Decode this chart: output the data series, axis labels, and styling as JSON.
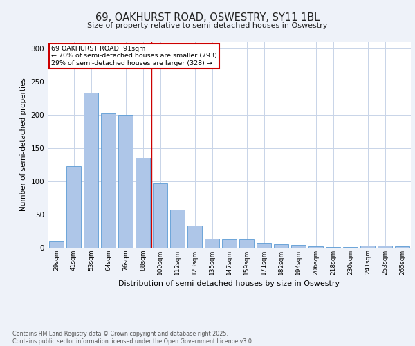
{
  "title1": "69, OAKHURST ROAD, OSWESTRY, SY11 1BL",
  "title2": "Size of property relative to semi-detached houses in Oswestry",
  "xlabel": "Distribution of semi-detached houses by size in Oswestry",
  "ylabel": "Number of semi-detached properties",
  "categories": [
    "29sqm",
    "41sqm",
    "53sqm",
    "64sqm",
    "76sqm",
    "88sqm",
    "100sqm",
    "112sqm",
    "123sqm",
    "135sqm",
    "147sqm",
    "159sqm",
    "171sqm",
    "182sqm",
    "194sqm",
    "206sqm",
    "218sqm",
    "230sqm",
    "241sqm",
    "253sqm",
    "265sqm"
  ],
  "values": [
    10,
    122,
    233,
    202,
    200,
    135,
    96,
    57,
    33,
    13,
    12,
    12,
    7,
    5,
    4,
    2,
    1,
    1,
    3,
    3,
    2
  ],
  "bar_color": "#aec6e8",
  "bar_edge_color": "#5b9bd5",
  "annotation_text": "69 OAKHURST ROAD: 91sqm\n← 70% of semi-detached houses are smaller (793)\n29% of semi-detached houses are larger (328) →",
  "vline_color": "#cc0000",
  "vline_x": 5.5,
  "ylim": [
    0,
    310
  ],
  "yticks": [
    0,
    50,
    100,
    150,
    200,
    250,
    300
  ],
  "footer": "Contains HM Land Registry data © Crown copyright and database right 2025.\nContains public sector information licensed under the Open Government Licence v3.0.",
  "bg_color": "#eef2f9",
  "plot_bg_color": "#ffffff",
  "grid_color": "#c8d4e8"
}
